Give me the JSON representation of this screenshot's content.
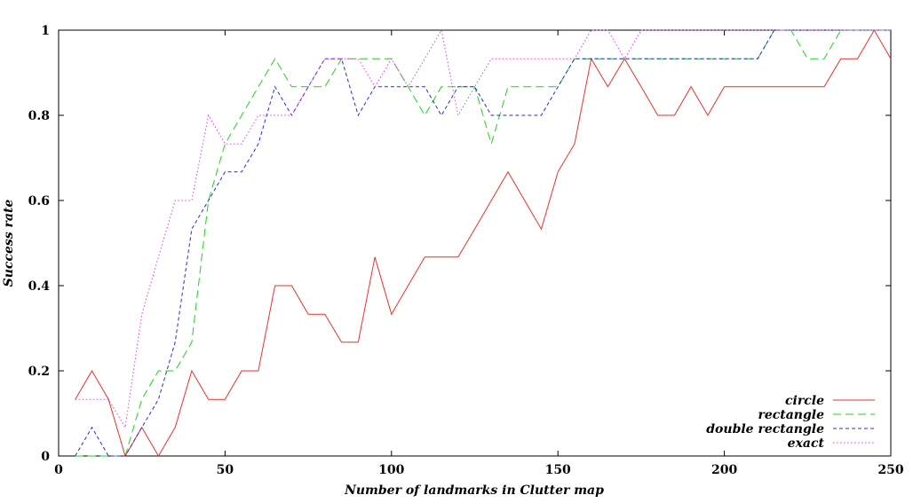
{
  "chart_data": {
    "type": "line",
    "title": "",
    "xlabel": "Number of landmarks in Clutter map",
    "ylabel": "Success rate",
    "xlim": [
      0,
      250
    ],
    "ylim": [
      0,
      1
    ],
    "x_ticks": [
      "0",
      "50",
      "100",
      "150",
      "200",
      "250"
    ],
    "y_ticks": [
      "0",
      "0.2",
      "0.4",
      "0.6",
      "0.8",
      "1"
    ],
    "x_tick_values": [
      0,
      50,
      100,
      150,
      200,
      250
    ],
    "y_tick_values": [
      0,
      0.2,
      0.4,
      0.6,
      0.8,
      1
    ],
    "grid": false,
    "legend_position": "bottom-right",
    "x": [
      5,
      10,
      15,
      20,
      25,
      30,
      35,
      40,
      45,
      50,
      55,
      60,
      65,
      70,
      75,
      80,
      85,
      90,
      95,
      100,
      105,
      110,
      115,
      120,
      125,
      130,
      135,
      140,
      145,
      150,
      155,
      160,
      165,
      170,
      175,
      180,
      185,
      190,
      195,
      200,
      205,
      210,
      215,
      220,
      225,
      230,
      235,
      240,
      245,
      250
    ],
    "series": [
      {
        "name": "circle",
        "color": "#e8312f",
        "dash": "solid",
        "values": [
          0.133,
          0.2,
          0.133,
          0,
          0.067,
          0,
          0.067,
          0.2,
          0.133,
          0.133,
          0.2,
          0.2,
          0.4,
          0.4,
          0.333,
          0.333,
          0.267,
          0.267,
          0.467,
          0.333,
          0.4,
          0.467,
          0.467,
          0.467,
          0.533,
          0.6,
          0.667,
          0.6,
          0.533,
          0.667,
          0.733,
          0.933,
          0.867,
          0.933,
          0.867,
          0.8,
          0.8,
          0.867,
          0.8,
          0.867,
          0.867,
          0.867,
          0.867,
          0.867,
          0.867,
          0.867,
          0.933,
          0.933,
          1,
          0.933
        ]
      },
      {
        "name": "rectangle",
        "color": "#1fd41f",
        "dash": "long-dash",
        "values": [
          0,
          0,
          0,
          0,
          0.133,
          0.2,
          0.2,
          0.267,
          0.6,
          0.733,
          0.8,
          0.867,
          0.933,
          0.867,
          0.867,
          0.867,
          0.933,
          0.933,
          0.933,
          0.933,
          0.867,
          0.8,
          0.867,
          0.867,
          0.867,
          0.733,
          0.867,
          0.867,
          0.867,
          0.867,
          0.933,
          0.933,
          0.933,
          0.933,
          0.933,
          0.933,
          0.933,
          0.933,
          0.933,
          0.933,
          0.933,
          0.933,
          1,
          1,
          0.933,
          0.933,
          1,
          1,
          1,
          1
        ]
      },
      {
        "name": "double rectangle",
        "color": "#2a2ad0",
        "dash": "short-dash",
        "values": [
          0,
          0.067,
          0,
          0,
          0.067,
          0.133,
          0.267,
          0.533,
          0.6,
          0.667,
          0.667,
          0.733,
          0.867,
          0.8,
          0.867,
          0.933,
          0.933,
          0.8,
          0.867,
          0.867,
          0.867,
          0.867,
          0.8,
          0.867,
          0.867,
          0.8,
          0.8,
          0.8,
          0.8,
          0.867,
          0.933,
          0.933,
          0.933,
          0.933,
          0.933,
          0.933,
          0.933,
          0.933,
          0.933,
          0.933,
          0.933,
          0.933,
          1,
          1,
          1,
          1,
          1,
          1,
          1,
          1
        ]
      },
      {
        "name": "exact",
        "color": "#e040e0",
        "dash": "dotted",
        "values": [
          0.133,
          0.133,
          0.133,
          0.067,
          0.333,
          0.467,
          0.6,
          0.6,
          0.8,
          0.733,
          0.733,
          0.8,
          0.8,
          0.8,
          0.867,
          0.933,
          0.933,
          0.933,
          0.867,
          0.933,
          0.867,
          0.933,
          1,
          0.8,
          0.867,
          0.933,
          0.933,
          0.933,
          0.933,
          0.933,
          0.933,
          1,
          1,
          0.933,
          1,
          1,
          1,
          1,
          1,
          1,
          1,
          1,
          1,
          1,
          1,
          1,
          1,
          1,
          1,
          1
        ]
      }
    ]
  }
}
